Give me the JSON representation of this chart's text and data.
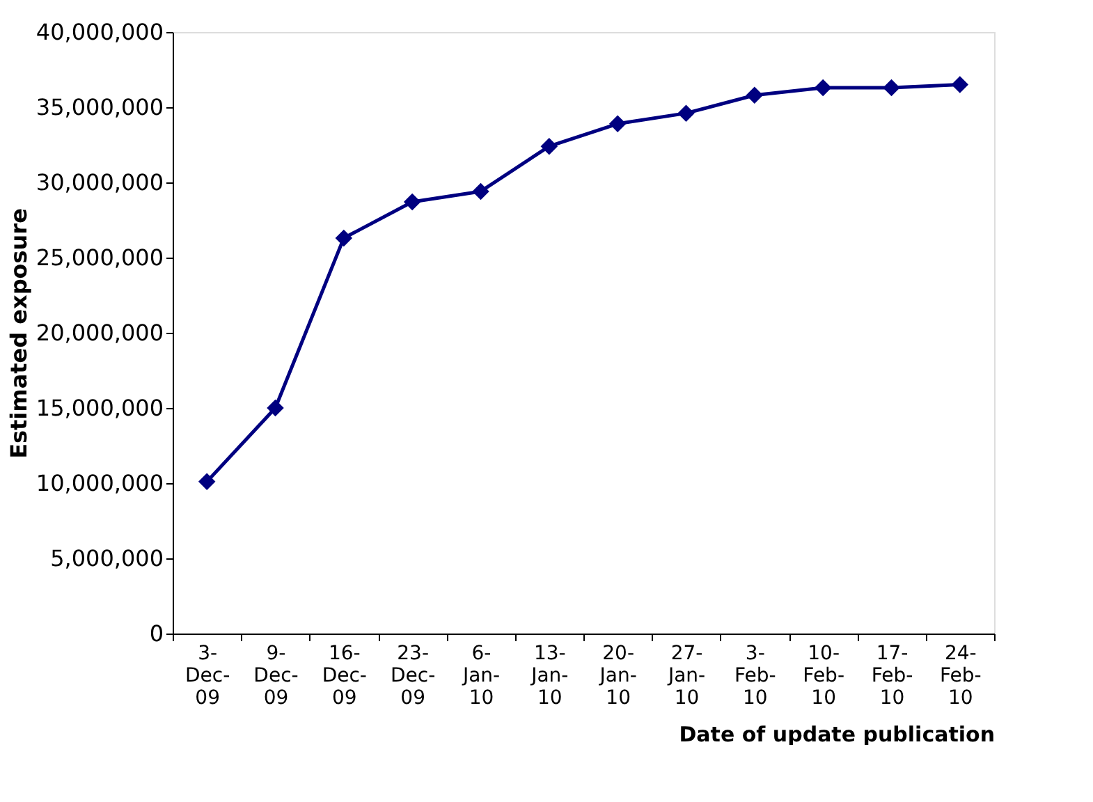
{
  "chart_data": {
    "type": "line",
    "xlabel": "Date of update publication",
    "ylabel": "Estimated exposure",
    "categories": [
      "3-Dec-09",
      "9-Dec-09",
      "16-Dec-09",
      "23-Dec-09",
      "6-Jan-10",
      "13-Jan-10",
      "20-Jan-10",
      "27-Jan-10",
      "3-Feb-10",
      "10-Feb-10",
      "17-Feb-10",
      "24-Feb-10"
    ],
    "series": [
      {
        "color": "#000080",
        "values": [
          10100000,
          15000000,
          26300000,
          28700000,
          29400000,
          32400000,
          33900000,
          34600000,
          35800000,
          36300000,
          36300000,
          36500000
        ]
      }
    ],
    "ylim": [
      0,
      40000000
    ],
    "yticks": [
      0,
      {
        "value": 5000000,
        "label": "5,000,000"
      },
      {
        "value": 10000000,
        "label": "10,000,000"
      },
      {
        "value": 15000000,
        "label": "15,000,000"
      },
      {
        "value": 20000000,
        "label": "20,000,000"
      },
      {
        "value": 25000000,
        "label": "25,000,000"
      },
      {
        "value": 30000000,
        "label": "30,000,000"
      },
      {
        "value": 35000000,
        "label": "35,000,000"
      },
      {
        "value": 40000000,
        "label": "40,000,000"
      }
    ],
    "grid": false,
    "legend": false,
    "marker": "diamond",
    "line_style": "solid"
  }
}
